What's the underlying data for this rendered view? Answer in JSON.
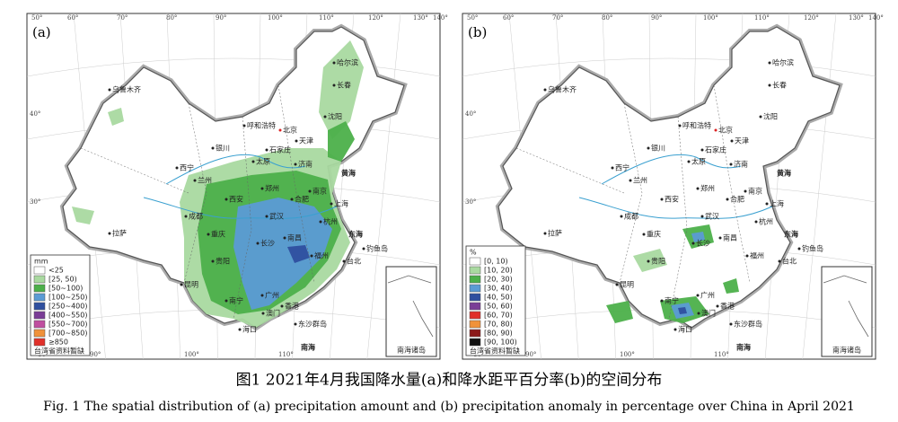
{
  "panels": [
    {
      "label": "(a)",
      "legend": {
        "unit": "mm",
        "items": [
          "<25",
          "[25, 50)",
          "[50~100)",
          "[100~250)",
          "[250~400)",
          "[400~550)",
          "[550~700)",
          "[700~850)",
          "≥850"
        ],
        "colors": [
          "#ffffff",
          "#a9d9a0",
          "#4cb04a",
          "#5b9bd5",
          "#2f4f9f",
          "#7a3d96",
          "#c04fa0",
          "#f0923a",
          "#e0302a"
        ]
      },
      "note": "台湾省资料暂缺",
      "inset": "南海诸岛"
    },
    {
      "label": "(b)",
      "legend": {
        "unit": "%",
        "items": [
          "[0, 10)",
          "[10, 20)",
          "[20, 30)",
          "[30, 40)",
          "[40, 50)",
          "[50, 60)",
          "[60, 70)",
          "[70, 80)",
          "[80, 90)",
          "[90, 100)"
        ],
        "colors": [
          "#ffffff",
          "#a9d9a0",
          "#4cb04a",
          "#5b9bd5",
          "#2f4f9f",
          "#7a3d96",
          "#e0302a",
          "#f0923a",
          "#8b1a1a",
          "#111111"
        ]
      },
      "note": "台湾省资料暂缺",
      "inset": "南海诸岛"
    }
  ],
  "cities": [
    "乌鲁木齐",
    "哈尔滨",
    "长春",
    "沈阳",
    "呼和浩特",
    "北京",
    "天津",
    "石家庄",
    "银川",
    "太原",
    "济南",
    "西宁",
    "兰州",
    "郑州",
    "西安",
    "合肥",
    "南京",
    "上海",
    "武汉",
    "成都",
    "杭州",
    "重庆",
    "拉萨",
    "长沙",
    "南昌",
    "贵阳",
    "福州",
    "台北",
    "昆明",
    "南宁",
    "广州",
    "香港",
    "澳门",
    "海口",
    "钓鱼岛",
    "东沙群岛"
  ],
  "seas": [
    "黄海",
    "东海",
    "南海"
  ],
  "lon_top": [
    "50°",
    "60°",
    "70°",
    "80°",
    "90°",
    "100°",
    "110°",
    "120°",
    "130°",
    "140°"
  ],
  "lon_bottom": [
    "80°",
    "90°",
    "100°",
    "110°",
    "120°"
  ],
  "lat": [
    "40°",
    "30°",
    "20°"
  ],
  "caption": {
    "zh": "图1 2021年4月我国降水量(a)和降水距平百分率(b)的空间分布",
    "en": "Fig. 1 The spatial distribution of (a) precipitation amount and (b) precipitation anomaly in percentage over China in April 2021"
  }
}
